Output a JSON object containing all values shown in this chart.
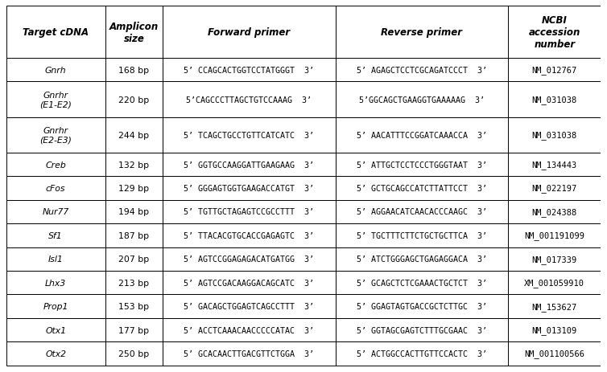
{
  "headers": [
    "Target cDNA",
    "Amplicon\nsize",
    "Forward primer",
    "Reverse primer",
    "NCBI\naccession\nnumber"
  ],
  "col_weights": [
    1.55,
    0.9,
    2.7,
    2.7,
    1.45
  ],
  "rows": [
    [
      "Gnrh",
      "168 bp",
      "5’ CCAGCACTGGTCCTATGGGT  3’",
      "5’ AGAGCTCCTCGCAGATCCCT  3’",
      "NM_012767"
    ],
    [
      "Gnrhr\n(E1-E2)",
      "220 bp",
      "5’CAGCCCTTAGCTGTCCAAAG  3’",
      "5’GGCAGCTGAAGGTGAAAAAG  3’",
      "NM_031038"
    ],
    [
      "Gnrhr\n(E2-E3)",
      "244 bp",
      "5’ TCAGCTGCCTGTTCATCATC  3’",
      "5’ AACATTTCCGGATCAAACCA  3’",
      "NM_031038"
    ],
    [
      "Creb",
      "132 bp",
      "5’ GGTGCCAAGGATTGAAGAAG  3’",
      "5’ ATTGCTCCTCCCTGGGTAAT  3’",
      "NM_134443"
    ],
    [
      "cFos",
      "129 bp",
      "5’ GGGAGTGGTGAAGACCATGT  3’",
      "5’ GCTGCAGCCATCTTATTCCT  3’",
      "NM_022197"
    ],
    [
      "Nur77",
      "194 bp",
      "5’ TGTTGCTAGAGTCCGCCTTT  3’",
      "5’ AGGAACATCAACACCCAAGC  3’",
      "NM_024388"
    ],
    [
      "Sf1",
      "187 bp",
      "5’ TTACACGTGCACCGAGAGTC  3’",
      "5’ TGCTTTCTTCTGCTGCTTCA  3’",
      "NM_001191099"
    ],
    [
      "Isl1",
      "207 bp",
      "5’ AGTCCGGAGAGACATGATGG  3’",
      "5’ ATCTGGGAGCTGAGAGGACA  3’",
      "NM_017339"
    ],
    [
      "Lhx3",
      "213 bp",
      "5’ AGTCCGACAAGGACAGCATC  3’",
      "5’ GCAGCTCTCGAAACTGCTCT  3’",
      "XM_001059910"
    ],
    [
      "Prop1",
      "153 bp",
      "5’ GACAGCTGGAGTCAGCCTTT  3’",
      "5’ GGAGTAGTGACCGCTCTTGC  3’",
      "NM_153627"
    ],
    [
      "Otx1",
      "177 bp",
      "5’ ACCTCAAACAACCCCCATAC  3’",
      "5’ GGTAGCGAGTCTTTGCGAAC  3’",
      "NM_013109"
    ],
    [
      "Otx2",
      "250 bp",
      "5’ GCACAACTTGACGTTCTGGA  3’",
      "5’ ACTGGCCACTTGTTCCACTC  3’",
      "NM_001100566"
    ]
  ],
  "border_color": "#000000",
  "header_fontsize": 8.5,
  "cell_fontsize": 7.8,
  "primer_fontsize": 7.2,
  "accession_fontsize": 7.5,
  "fig_width": 7.54,
  "fig_height": 4.64,
  "lw": 0.7
}
